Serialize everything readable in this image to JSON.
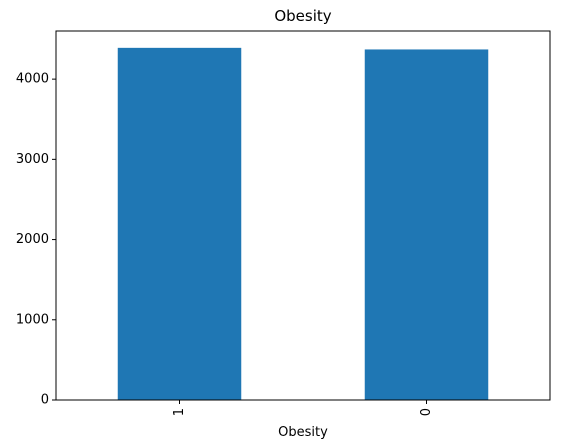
{
  "chart_data": {
    "type": "bar",
    "title": "Obesity",
    "xlabel": "Obesity",
    "ylabel": "",
    "categories": [
      "1",
      "0"
    ],
    "values": [
      4390,
      4370
    ],
    "ylim": [
      0,
      4600
    ],
    "yticks": [
      0,
      1000,
      2000,
      3000,
      4000
    ],
    "ytick_labels": [
      "0",
      "1000",
      "2000",
      "3000",
      "4000"
    ],
    "bar_color": "#1f77b4",
    "grid": false,
    "xtick_rotation": "vertical"
  }
}
